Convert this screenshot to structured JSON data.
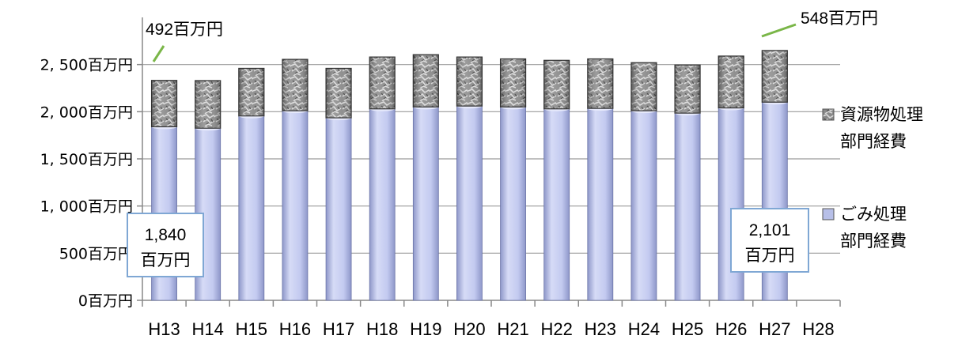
{
  "chart_data": {
    "type": "bar",
    "stacked": true,
    "categories": [
      "H13",
      "H14",
      "H15",
      "H16",
      "H17",
      "H18",
      "H19",
      "H20",
      "H21",
      "H22",
      "H23",
      "H24",
      "H25",
      "H26",
      "H27",
      "H28"
    ],
    "series": [
      {
        "name": "ごみ処理\n部門経費",
        "legend_lines": [
          "ごみ処理",
          "部門経費"
        ],
        "color": "#b7bfe8",
        "values": [
          1840,
          1825,
          1955,
          2010,
          1935,
          2030,
          2050,
          2060,
          2050,
          2030,
          2035,
          2010,
          1985,
          2040,
          2101,
          null
        ]
      },
      {
        "name": "資源物処理\n部門経費",
        "legend_lines": [
          "資源物処理",
          "部門経費"
        ],
        "color": "#8f8f8f",
        "values": [
          492,
          505,
          505,
          545,
          525,
          550,
          555,
          520,
          510,
          515,
          525,
          510,
          510,
          550,
          548,
          null
        ]
      }
    ],
    "y_ticks": [
      "0百万円",
      "500百万円",
      "1, 000百万円",
      "1, 500百万円",
      "2, 000百万円",
      "2, 500百万円"
    ],
    "y_tick_values": [
      0,
      500,
      1000,
      1500,
      2000,
      2500
    ],
    "ylim": [
      0,
      3000
    ],
    "grid": true,
    "legend_position": "right",
    "annotations": {
      "first_bottom_value": "1,840",
      "first_bottom_unit": "百万円",
      "last_bottom_value": "2,101",
      "last_bottom_unit": "百万円",
      "first_top_label": "492百万円",
      "last_top_label": "548百万円"
    }
  },
  "colors": {
    "callout_border": "#7fa7d4",
    "leader_line": "#7ab648",
    "grid": "#9a9a9a"
  }
}
